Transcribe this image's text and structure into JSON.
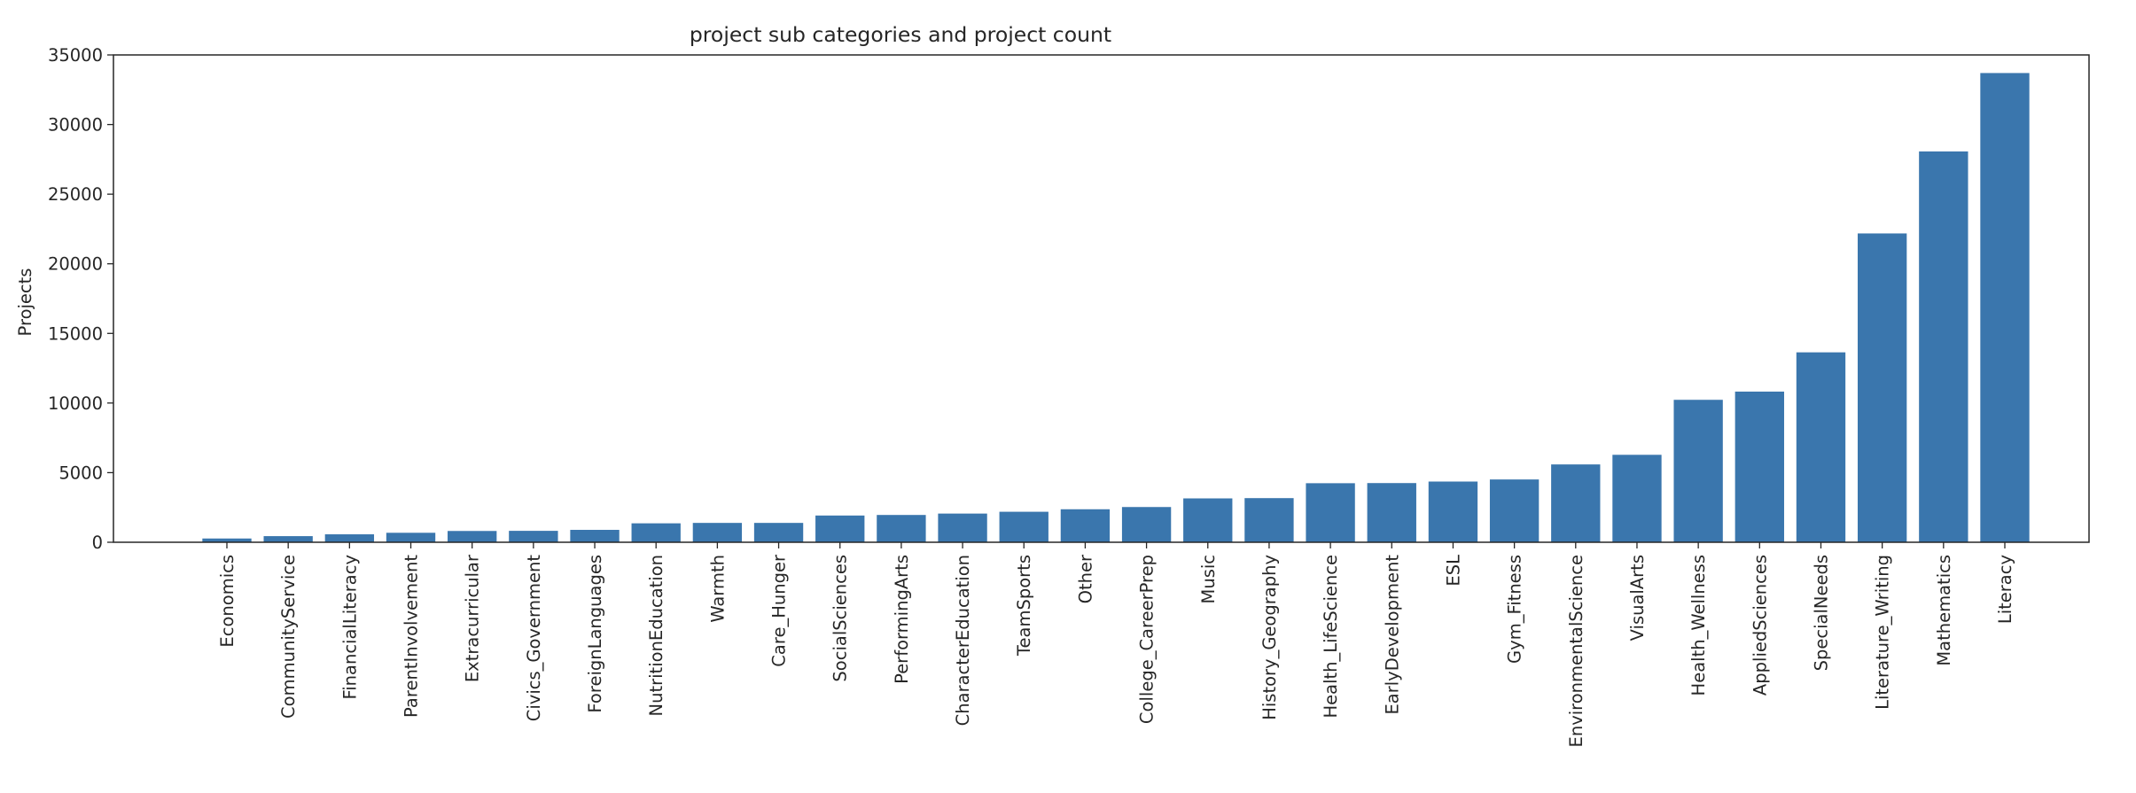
{
  "chart_data": {
    "type": "bar",
    "title": "project sub categories and project count",
    "xlabel": "",
    "ylabel": "Projects",
    "ylim": [
      0,
      35000
    ],
    "yticks": [
      0,
      5000,
      10000,
      15000,
      20000,
      25000,
      30000,
      35000
    ],
    "grid": false,
    "color": "#3a76ad",
    "categories": [
      "Economics",
      "CommunityService",
      "FinancialLiteracy",
      "ParentInvolvement",
      "Extracurricular",
      "Civics_Government",
      "ForeignLanguages",
      "NutritionEducation",
      "Warmth",
      "Care_Hunger",
      "SocialSciences",
      "PerformingArts",
      "CharacterEducation",
      "TeamSports",
      "Other",
      "College_CareerPrep",
      "Music",
      "History_Geography",
      "Health_LifeScience",
      "EarlyDevelopment",
      "ESL",
      "Gym_Fitness",
      "EnvironmentalScience",
      "VisualArts",
      "Health_Wellness",
      "AppliedSciences",
      "SpecialNeeds",
      "Literature_Writing",
      "Mathematics",
      "Literacy"
    ],
    "values": [
      270,
      440,
      570,
      680,
      810,
      820,
      890,
      1360,
      1390,
      1390,
      1920,
      1960,
      2060,
      2190,
      2370,
      2530,
      3150,
      3170,
      4240,
      4250,
      4360,
      4510,
      5590,
      6280,
      10230,
      10820,
      13640,
      22180,
      28070,
      33700
    ]
  }
}
